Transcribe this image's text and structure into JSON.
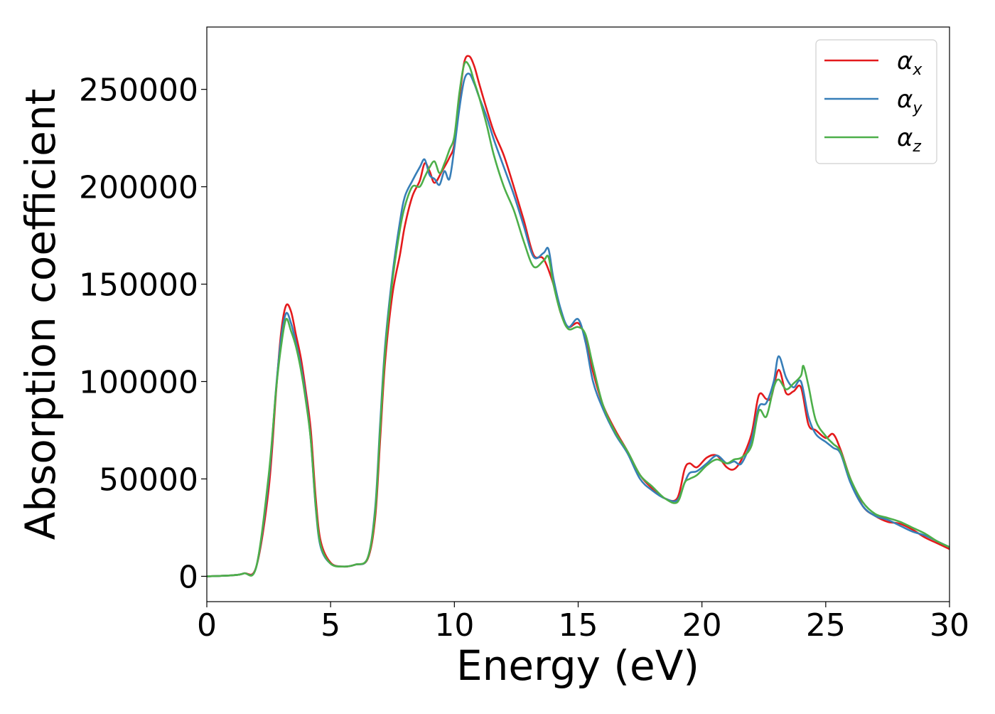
{
  "chart_data": {
    "type": "line",
    "title": "",
    "xlabel": "Energy (eV)",
    "ylabel": "Absorption coefficient",
    "xlim": [
      0,
      30
    ],
    "ylim": [
      -13000,
      282000
    ],
    "xticks": [
      0,
      5,
      10,
      15,
      20,
      25,
      30
    ],
    "xtick_labels": [
      "0",
      "5",
      "10",
      "15",
      "20",
      "25",
      "30"
    ],
    "yticks": [
      0,
      50000,
      100000,
      150000,
      200000,
      250000
    ],
    "ytick_labels": [
      "0",
      "50000",
      "100000",
      "150000",
      "200000",
      "250000"
    ],
    "grid": false,
    "legend_position": "top-right",
    "series": [
      {
        "name": "αx",
        "legend_main": "α",
        "legend_sub": "x",
        "color": "#e41a1c",
        "points": [
          [
            0,
            0
          ],
          [
            1,
            500
          ],
          [
            1.5,
            1500
          ],
          [
            2,
            5000
          ],
          [
            2.5,
            45000
          ],
          [
            2.8,
            95000
          ],
          [
            3.0,
            125000
          ],
          [
            3.2,
            139000
          ],
          [
            3.4,
            136000
          ],
          [
            3.6,
            124000
          ],
          [
            3.8,
            112000
          ],
          [
            4.0,
            95000
          ],
          [
            4.2,
            75000
          ],
          [
            4.4,
            40000
          ],
          [
            4.6,
            18000
          ],
          [
            5.0,
            7000
          ],
          [
            5.5,
            5000
          ],
          [
            6.0,
            6000
          ],
          [
            6.5,
            9000
          ],
          [
            6.8,
            30000
          ],
          [
            7.0,
            70000
          ],
          [
            7.2,
            110000
          ],
          [
            7.5,
            145000
          ],
          [
            7.8,
            165000
          ],
          [
            8.0,
            180000
          ],
          [
            8.3,
            195000
          ],
          [
            8.6,
            203000
          ],
          [
            8.8,
            212000
          ],
          [
            9.0,
            208000
          ],
          [
            9.2,
            202000
          ],
          [
            9.5,
            208000
          ],
          [
            9.8,
            215000
          ],
          [
            10.0,
            222000
          ],
          [
            10.2,
            245000
          ],
          [
            10.4,
            264000
          ],
          [
            10.6,
            267000
          ],
          [
            10.8,
            262000
          ],
          [
            11.0,
            253000
          ],
          [
            11.3,
            240000
          ],
          [
            11.6,
            228000
          ],
          [
            12.0,
            216000
          ],
          [
            12.4,
            200000
          ],
          [
            12.8,
            183000
          ],
          [
            13.2,
            165000
          ],
          [
            13.6,
            163000
          ],
          [
            14.0,
            150000
          ],
          [
            14.3,
            135000
          ],
          [
            14.6,
            128000
          ],
          [
            15.0,
            130000
          ],
          [
            15.3,
            122000
          ],
          [
            15.6,
            105000
          ],
          [
            16.0,
            88000
          ],
          [
            16.5,
            75000
          ],
          [
            17.0,
            64000
          ],
          [
            17.5,
            52000
          ],
          [
            18.0,
            45000
          ],
          [
            18.5,
            40000
          ],
          [
            19.0,
            40000
          ],
          [
            19.3,
            55000
          ],
          [
            19.5,
            58000
          ],
          [
            19.8,
            56000
          ],
          [
            20.2,
            61000
          ],
          [
            20.6,
            62000
          ],
          [
            21.0,
            56000
          ],
          [
            21.3,
            55000
          ],
          [
            21.6,
            60000
          ],
          [
            22.0,
            73000
          ],
          [
            22.3,
            93000
          ],
          [
            22.6,
            91000
          ],
          [
            22.8,
            92000
          ],
          [
            23.1,
            106000
          ],
          [
            23.4,
            94000
          ],
          [
            23.7,
            95000
          ],
          [
            24.0,
            97000
          ],
          [
            24.3,
            78000
          ],
          [
            24.6,
            75000
          ],
          [
            25.0,
            71000
          ],
          [
            25.3,
            73000
          ],
          [
            25.6,
            65000
          ],
          [
            26.0,
            50000
          ],
          [
            26.5,
            36000
          ],
          [
            27.0,
            31000
          ],
          [
            27.5,
            28000
          ],
          [
            28.0,
            27000
          ],
          [
            28.5,
            24000
          ],
          [
            29.0,
            20000
          ],
          [
            29.5,
            17000
          ],
          [
            30,
            14000
          ]
        ]
      },
      {
        "name": "αy",
        "legend_main": "α",
        "legend_sub": "y",
        "color": "#377eb8",
        "points": [
          [
            0,
            0
          ],
          [
            1,
            500
          ],
          [
            1.5,
            1500
          ],
          [
            2,
            5000
          ],
          [
            2.5,
            50000
          ],
          [
            2.8,
            97000
          ],
          [
            3.0,
            122000
          ],
          [
            3.2,
            135000
          ],
          [
            3.4,
            130000
          ],
          [
            3.6,
            120000
          ],
          [
            3.8,
            108000
          ],
          [
            4.0,
            92000
          ],
          [
            4.2,
            70000
          ],
          [
            4.4,
            35000
          ],
          [
            4.6,
            15000
          ],
          [
            5.0,
            6500
          ],
          [
            5.5,
            5000
          ],
          [
            6.0,
            6000
          ],
          [
            6.5,
            9500
          ],
          [
            6.8,
            35000
          ],
          [
            7.0,
            78000
          ],
          [
            7.2,
            118000
          ],
          [
            7.5,
            155000
          ],
          [
            7.8,
            182000
          ],
          [
            8.0,
            195000
          ],
          [
            8.3,
            203000
          ],
          [
            8.6,
            210000
          ],
          [
            8.8,
            214000
          ],
          [
            9.0,
            206000
          ],
          [
            9.2,
            204000
          ],
          [
            9.4,
            201000
          ],
          [
            9.6,
            208000
          ],
          [
            9.8,
            204000
          ],
          [
            10.0,
            220000
          ],
          [
            10.2,
            240000
          ],
          [
            10.4,
            255000
          ],
          [
            10.6,
            258000
          ],
          [
            10.8,
            253000
          ],
          [
            11.0,
            246000
          ],
          [
            11.3,
            236000
          ],
          [
            11.6,
            224000
          ],
          [
            12.0,
            210000
          ],
          [
            12.4,
            196000
          ],
          [
            12.8,
            180000
          ],
          [
            13.2,
            164000
          ],
          [
            13.6,
            166000
          ],
          [
            13.8,
            168000
          ],
          [
            14.0,
            153000
          ],
          [
            14.3,
            137000
          ],
          [
            14.6,
            128000
          ],
          [
            15.0,
            132000
          ],
          [
            15.3,
            120000
          ],
          [
            15.6,
            100000
          ],
          [
            16.0,
            86000
          ],
          [
            16.5,
            73000
          ],
          [
            17.0,
            63000
          ],
          [
            17.5,
            50000
          ],
          [
            18.0,
            44000
          ],
          [
            18.5,
            40000
          ],
          [
            19.0,
            39000
          ],
          [
            19.3,
            48000
          ],
          [
            19.5,
            53000
          ],
          [
            19.8,
            54000
          ],
          [
            20.2,
            58000
          ],
          [
            20.6,
            62000
          ],
          [
            21.0,
            58000
          ],
          [
            21.3,
            59000
          ],
          [
            21.6,
            58000
          ],
          [
            22.0,
            70000
          ],
          [
            22.3,
            87000
          ],
          [
            22.6,
            89000
          ],
          [
            22.9,
            100000
          ],
          [
            23.1,
            113000
          ],
          [
            23.4,
            102000
          ],
          [
            23.7,
            97000
          ],
          [
            24.0,
            100000
          ],
          [
            24.3,
            82000
          ],
          [
            24.6,
            73000
          ],
          [
            25.0,
            69000
          ],
          [
            25.3,
            66000
          ],
          [
            25.6,
            63000
          ],
          [
            26.0,
            48000
          ],
          [
            26.5,
            36000
          ],
          [
            27.0,
            31000
          ],
          [
            27.5,
            29000
          ],
          [
            28.0,
            26000
          ],
          [
            28.5,
            23000
          ],
          [
            29.0,
            21000
          ],
          [
            29.5,
            18000
          ],
          [
            30,
            15000
          ]
        ]
      },
      {
        "name": "αz",
        "legend_main": "α",
        "legend_sub": "z",
        "color": "#4daf4a",
        "points": [
          [
            0,
            0
          ],
          [
            1,
            500
          ],
          [
            1.5,
            1500
          ],
          [
            2,
            5000
          ],
          [
            2.5,
            52000
          ],
          [
            2.8,
            96000
          ],
          [
            3.0,
            118000
          ],
          [
            3.2,
            132000
          ],
          [
            3.4,
            126000
          ],
          [
            3.6,
            118000
          ],
          [
            3.8,
            106000
          ],
          [
            4.0,
            90000
          ],
          [
            4.2,
            70000
          ],
          [
            4.4,
            36000
          ],
          [
            4.6,
            16000
          ],
          [
            5.0,
            6500
          ],
          [
            5.5,
            5000
          ],
          [
            6.0,
            6000
          ],
          [
            6.5,
            9500
          ],
          [
            6.8,
            33000
          ],
          [
            7.0,
            75000
          ],
          [
            7.2,
            115000
          ],
          [
            7.5,
            152000
          ],
          [
            7.8,
            178000
          ],
          [
            8.0,
            190000
          ],
          [
            8.3,
            200000
          ],
          [
            8.6,
            200000
          ],
          [
            8.8,
            205000
          ],
          [
            9.0,
            210000
          ],
          [
            9.2,
            213000
          ],
          [
            9.4,
            207000
          ],
          [
            9.6,
            212000
          ],
          [
            9.8,
            219000
          ],
          [
            10.0,
            226000
          ],
          [
            10.2,
            248000
          ],
          [
            10.4,
            263000
          ],
          [
            10.6,
            262000
          ],
          [
            10.8,
            254000
          ],
          [
            11.0,
            246000
          ],
          [
            11.3,
            232000
          ],
          [
            11.6,
            216000
          ],
          [
            12.0,
            200000
          ],
          [
            12.4,
            188000
          ],
          [
            12.8,
            172000
          ],
          [
            13.2,
            159000
          ],
          [
            13.6,
            162000
          ],
          [
            13.8,
            164000
          ],
          [
            14.0,
            150000
          ],
          [
            14.3,
            135000
          ],
          [
            14.6,
            127000
          ],
          [
            15.0,
            128000
          ],
          [
            15.3,
            124000
          ],
          [
            15.6,
            108000
          ],
          [
            16.0,
            88000
          ],
          [
            16.5,
            74000
          ],
          [
            17.0,
            64000
          ],
          [
            17.5,
            52000
          ],
          [
            18.0,
            46000
          ],
          [
            18.5,
            40000
          ],
          [
            19.0,
            38000
          ],
          [
            19.3,
            48000
          ],
          [
            19.5,
            50000
          ],
          [
            19.8,
            52000
          ],
          [
            20.2,
            57000
          ],
          [
            20.6,
            60000
          ],
          [
            21.0,
            58000
          ],
          [
            21.3,
            60000
          ],
          [
            21.6,
            61000
          ],
          [
            22.0,
            67000
          ],
          [
            22.3,
            85000
          ],
          [
            22.6,
            82000
          ],
          [
            22.9,
            97000
          ],
          [
            23.1,
            101000
          ],
          [
            23.4,
            96000
          ],
          [
            23.7,
            99000
          ],
          [
            24.0,
            103000
          ],
          [
            24.1,
            108000
          ],
          [
            24.3,
            98000
          ],
          [
            24.6,
            80000
          ],
          [
            25.0,
            72000
          ],
          [
            25.3,
            68000
          ],
          [
            25.6,
            64000
          ],
          [
            26.0,
            50000
          ],
          [
            26.5,
            38000
          ],
          [
            27.0,
            32000
          ],
          [
            27.5,
            30000
          ],
          [
            28.0,
            28000
          ],
          [
            28.5,
            25000
          ],
          [
            29.0,
            22000
          ],
          [
            29.5,
            18000
          ],
          [
            30,
            15000
          ]
        ]
      }
    ]
  }
}
